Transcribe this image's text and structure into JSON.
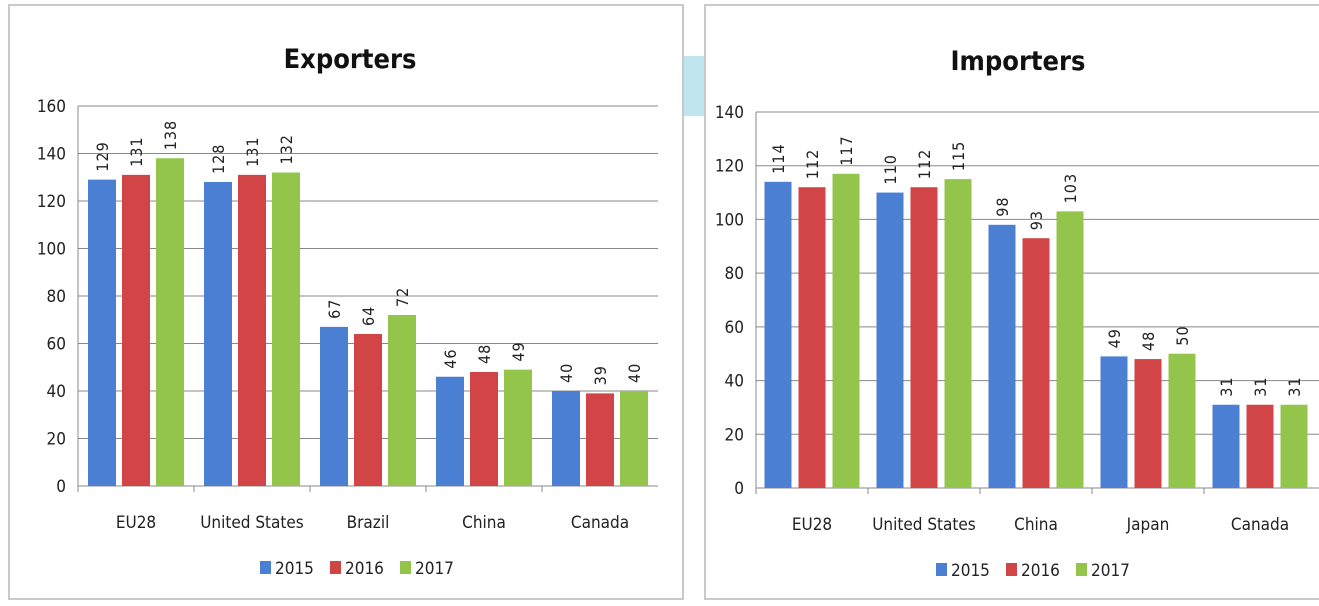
{
  "colors": {
    "2015": "#4a7fd4",
    "2016": "#d14547",
    "2017": "#93c54b"
  },
  "chart_data": [
    {
      "type": "bar",
      "title": "Exporters",
      "categories": [
        "EU28",
        "United States",
        "Brazil",
        "China",
        "Canada"
      ],
      "series": [
        {
          "name": "2015",
          "values": [
            129,
            128,
            67,
            46,
            40
          ]
        },
        {
          "name": "2016",
          "values": [
            131,
            131,
            64,
            48,
            39
          ]
        },
        {
          "name": "2017",
          "values": [
            138,
            132,
            72,
            49,
            40
          ]
        }
      ],
      "ylim": [
        0,
        160
      ],
      "yticks": [
        "0",
        "20",
        "40",
        "60",
        "80",
        "100",
        "120",
        "140",
        "160"
      ],
      "grid": true,
      "legend": "bottom"
    },
    {
      "type": "bar",
      "title": "Importers",
      "categories": [
        "EU28",
        "United States",
        "China",
        "Japan",
        "Canada"
      ],
      "series": [
        {
          "name": "2015",
          "values": [
            114,
            110,
            98,
            49,
            31
          ]
        },
        {
          "name": "2016",
          "values": [
            112,
            112,
            93,
            48,
            31
          ]
        },
        {
          "name": "2017",
          "values": [
            117,
            115,
            103,
            50,
            31
          ]
        }
      ],
      "ylim": [
        0,
        140
      ],
      "yticks": [
        "0",
        "20",
        "40",
        "60",
        "80",
        "100",
        "120",
        "140"
      ],
      "grid": true,
      "legend": "bottom"
    }
  ]
}
